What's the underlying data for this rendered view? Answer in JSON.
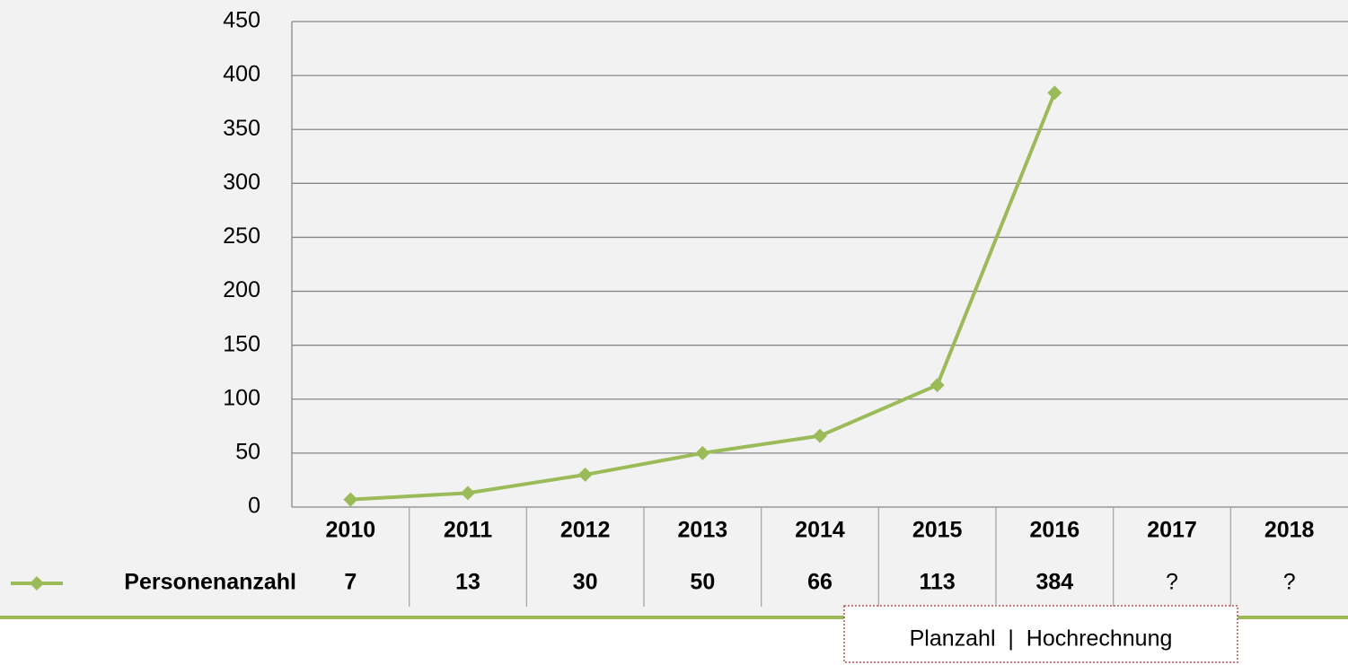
{
  "chart_data": {
    "type": "line",
    "categories": [
      "2010",
      "2011",
      "2012",
      "2013",
      "2014",
      "2015",
      "2016",
      "2017",
      "2018"
    ],
    "series": [
      {
        "name": "Personenanzahl",
        "color": "#9bbb59",
        "values": [
          7,
          13,
          30,
          50,
          66,
          113,
          384,
          null,
          null
        ],
        "value_labels": [
          "7",
          "13",
          "30",
          "50",
          "66",
          "113",
          "384",
          "?",
          "?"
        ]
      }
    ],
    "ylim": [
      0,
      450
    ],
    "yticks": [
      0,
      50,
      100,
      150,
      200,
      250,
      300,
      350,
      400,
      450
    ],
    "grid": true,
    "annotation": "Planzahl  |  Hochrechnung"
  }
}
